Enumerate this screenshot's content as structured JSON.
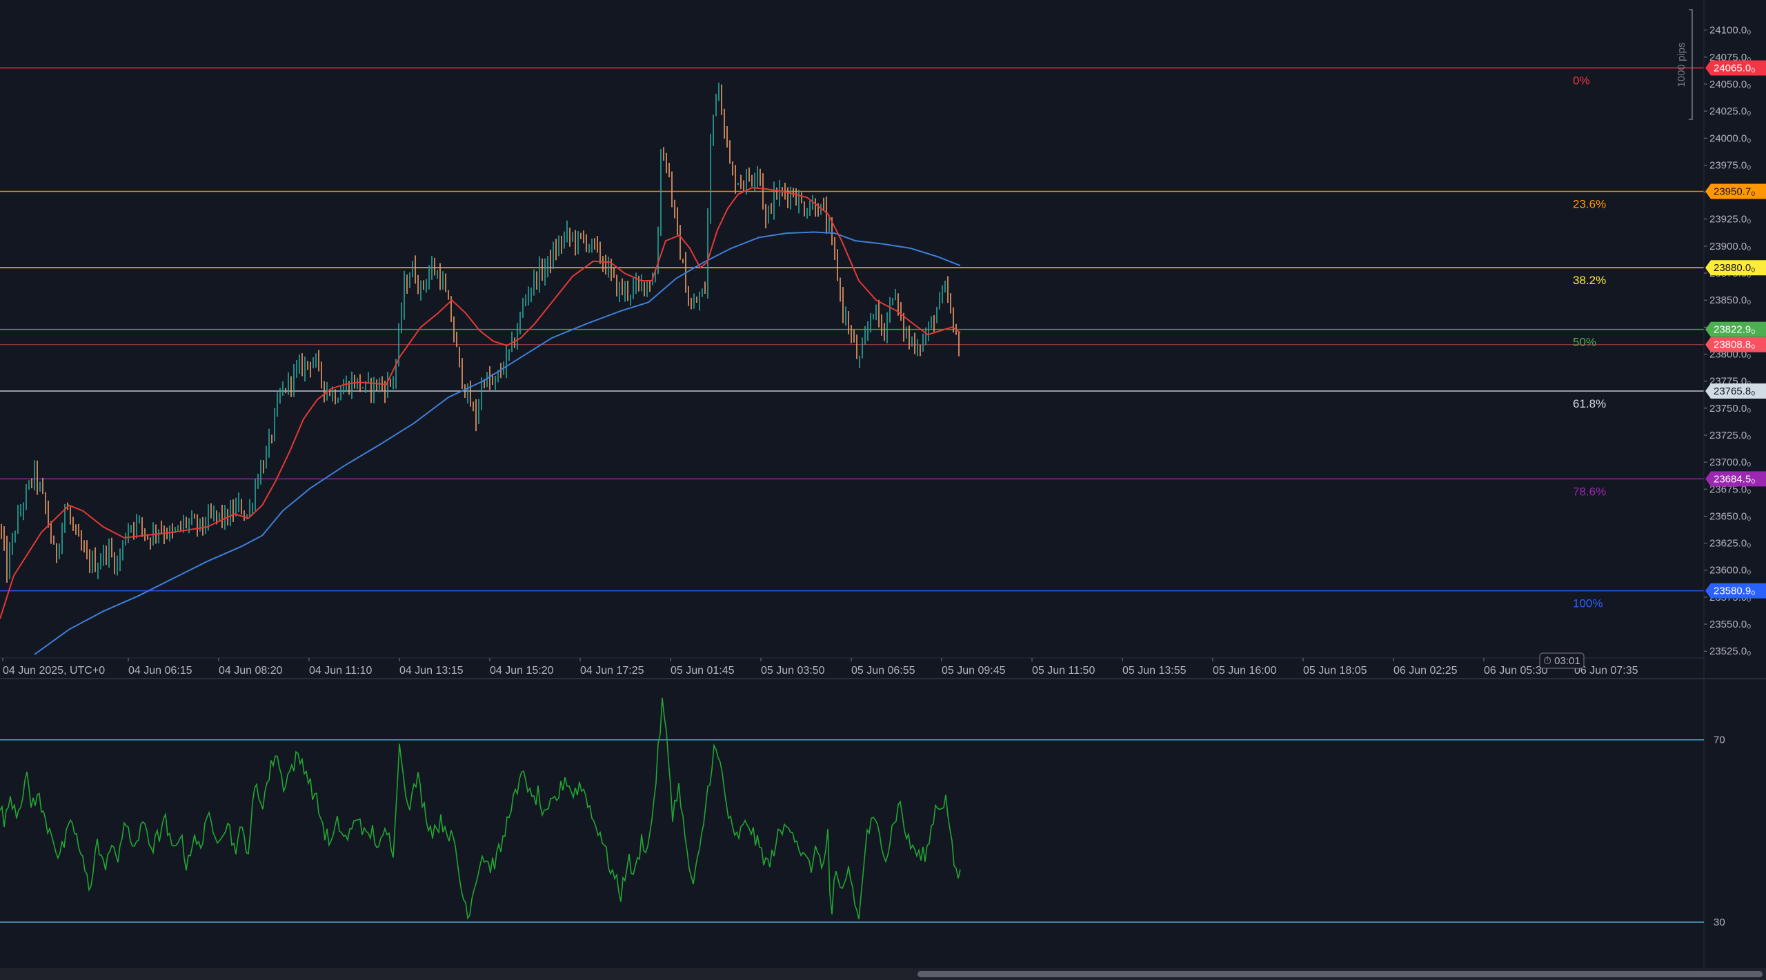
{
  "chart_data": {
    "type": "candlestick",
    "instrument_timezone_label": "04 Jun 2025, UTC+0",
    "price_axis": {
      "ylim": [
        23520,
        24110
      ],
      "tick_values": [
        24100,
        24075,
        24050,
        24025,
        24000,
        23975,
        23950,
        23925,
        23900,
        23875,
        23850,
        23825,
        23800,
        23775,
        23750,
        23725,
        23700,
        23675,
        23650,
        23625,
        23600,
        23575,
        23550,
        23525
      ],
      "tick_labels": [
        "24100.0₀",
        "24075.0₀",
        "24050.0₀",
        "24025.0₀",
        "24000.0₀",
        "23975.0₀",
        "23950.0₀",
        "23925.0₀",
        "23900.0₀",
        "23875.0₀",
        "23850.0₀",
        "23825.0₀",
        "23800.0₀",
        "23775.0₀",
        "23750.0₀",
        "23725.0₀",
        "23700.0₀",
        "23675.0₀",
        "23650.0₀",
        "23625.0₀",
        "23600.0₀",
        "23575.0₀",
        "23550.0₀",
        "23525.0₀"
      ]
    },
    "time_axis": {
      "labels": [
        "04 Jun 2025, UTC+0",
        "04 Jun 06:15",
        "04 Jun 08:20",
        "04 Jun 11:10",
        "04 Jun 13:15",
        "04 Jun 15:20",
        "04 Jun 17:25",
        "05 Jun 01:45",
        "05 Jun 03:50",
        "05 Jun 06:55",
        "05 Jun 09:45",
        "05 Jun 11:50",
        "05 Jun 13:55",
        "05 Jun 16:00",
        "05 Jun 18:05",
        "06 Jun 02:25",
        "06 Jun 05:30",
        "06 Jun 07:35"
      ],
      "countdown": "03:01"
    },
    "measure_label": "1000 pips",
    "fib_levels": [
      {
        "label": "0%",
        "price": 24065.0,
        "price_label": "24065.0₀",
        "color": "#f23645"
      },
      {
        "label": "23.6%",
        "price": 23950.7,
        "price_label": "23950.7₀",
        "color": "#ff9800"
      },
      {
        "label": "38.2%",
        "price": 23880.0,
        "price_label": "23880.0₀",
        "color": "#ffeb3b"
      },
      {
        "label": "50%",
        "price": 23822.9,
        "price_label": "23822.9₀",
        "color": "#4caf50"
      },
      {
        "label": "61.8%",
        "price": 23765.8,
        "price_label": "23765.8₀",
        "color": "#d1dce5"
      },
      {
        "label": "78.6%",
        "price": 23684.5,
        "price_label": "23684.5₀",
        "color": "#9c27b0"
      },
      {
        "label": "100%",
        "price": 23580.9,
        "price_label": "23580.9₀",
        "color": "#2962ff"
      }
    ],
    "current_price": {
      "price": 23808.8,
      "price_label": "23808.8₀",
      "color": "#f7525f"
    },
    "candle_colors": {
      "up": "#26a69a",
      "down": "#ef9a63"
    },
    "close_series_anchors": [
      [
        0,
        23640
      ],
      [
        10,
        23600
      ],
      [
        20,
        23635
      ],
      [
        35,
        23665
      ],
      [
        50,
        23690
      ],
      [
        65,
        23660
      ],
      [
        80,
        23610
      ],
      [
        95,
        23660
      ],
      [
        110,
        23630
      ],
      [
        125,
        23610
      ],
      [
        140,
        23605
      ],
      [
        155,
        23620
      ],
      [
        170,
        23605
      ],
      [
        185,
        23640
      ],
      [
        200,
        23645
      ],
      [
        215,
        23630
      ],
      [
        230,
        23640
      ],
      [
        250,
        23632
      ],
      [
        270,
        23645
      ],
      [
        290,
        23640
      ],
      [
        310,
        23650
      ],
      [
        330,
        23648
      ],
      [
        345,
        23660
      ],
      [
        360,
        23650
      ],
      [
        372,
        23685
      ],
      [
        388,
        23710
      ],
      [
        405,
        23760
      ],
      [
        425,
        23780
      ],
      [
        440,
        23790
      ],
      [
        455,
        23795
      ],
      [
        470,
        23770
      ],
      [
        485,
        23762
      ],
      [
        500,
        23770
      ],
      [
        515,
        23775
      ],
      [
        530,
        23768
      ],
      [
        545,
        23772
      ],
      [
        560,
        23770
      ],
      [
        572,
        23780
      ],
      [
        585,
        23860
      ],
      [
        597,
        23880
      ],
      [
        610,
        23860
      ],
      [
        625,
        23880
      ],
      [
        640,
        23870
      ],
      [
        655,
        23830
      ],
      [
        665,
        23790
      ],
      [
        678,
        23760
      ],
      [
        690,
        23740
      ],
      [
        700,
        23780
      ],
      [
        715,
        23770
      ],
      [
        730,
        23790
      ],
      [
        745,
        23810
      ],
      [
        760,
        23850
      ],
      [
        775,
        23870
      ],
      [
        790,
        23880
      ],
      [
        805,
        23895
      ],
      [
        820,
        23910
      ],
      [
        835,
        23905
      ],
      [
        850,
        23905
      ],
      [
        865,
        23895
      ],
      [
        880,
        23880
      ],
      [
        895,
        23860
      ],
      [
        910,
        23858
      ],
      [
        925,
        23862
      ],
      [
        940,
        23868
      ],
      [
        952,
        23875
      ],
      [
        958,
        23990
      ],
      [
        968,
        23975
      ],
      [
        980,
        23915
      ],
      [
        990,
        23880
      ],
      [
        1000,
        23840
      ],
      [
        1012,
        23850
      ],
      [
        1022,
        23860
      ],
      [
        1030,
        23995
      ],
      [
        1040,
        24060
      ],
      [
        1050,
        24010
      ],
      [
        1060,
        23965
      ],
      [
        1075,
        23960
      ],
      [
        1090,
        23965
      ],
      [
        1100,
        23975
      ],
      [
        1110,
        23920
      ],
      [
        1120,
        23945
      ],
      [
        1135,
        23950
      ],
      [
        1150,
        23950
      ],
      [
        1165,
        23935
      ],
      [
        1180,
        23940
      ],
      [
        1195,
        23930
      ],
      [
        1205,
        23905
      ],
      [
        1212,
        23880
      ],
      [
        1222,
        23840
      ],
      [
        1235,
        23815
      ],
      [
        1245,
        23790
      ],
      [
        1255,
        23815
      ],
      [
        1265,
        23845
      ],
      [
        1280,
        23820
      ],
      [
        1295,
        23860
      ],
      [
        1305,
        23830
      ],
      [
        1320,
        23810
      ],
      [
        1335,
        23810
      ],
      [
        1345,
        23820
      ],
      [
        1360,
        23845
      ],
      [
        1372,
        23860
      ],
      [
        1382,
        23820
      ],
      [
        1392,
        23810
      ]
    ],
    "ema_fast_anchors": [
      [
        0,
        23555
      ],
      [
        20,
        23595
      ],
      [
        60,
        23635
      ],
      [
        100,
        23660
      ],
      [
        120,
        23655
      ],
      [
        150,
        23640
      ],
      [
        180,
        23630
      ],
      [
        250,
        23635
      ],
      [
        300,
        23640
      ],
      [
        340,
        23652
      ],
      [
        360,
        23648
      ],
      [
        380,
        23660
      ],
      [
        400,
        23683
      ],
      [
        420,
        23710
      ],
      [
        440,
        23740
      ],
      [
        460,
        23758
      ],
      [
        480,
        23768
      ],
      [
        500,
        23772
      ],
      [
        520,
        23774
      ],
      [
        560,
        23772
      ],
      [
        580,
        23798
      ],
      [
        610,
        23825
      ],
      [
        635,
        23838
      ],
      [
        655,
        23850
      ],
      [
        675,
        23838
      ],
      [
        695,
        23822
      ],
      [
        715,
        23812
      ],
      [
        735,
        23808
      ],
      [
        755,
        23815
      ],
      [
        775,
        23828
      ],
      [
        800,
        23848
      ],
      [
        830,
        23872
      ],
      [
        860,
        23886
      ],
      [
        885,
        23885
      ],
      [
        905,
        23875
      ],
      [
        930,
        23868
      ],
      [
        945,
        23868
      ],
      [
        965,
        23905
      ],
      [
        985,
        23910
      ],
      [
        1000,
        23898
      ],
      [
        1015,
        23880
      ],
      [
        1025,
        23885
      ],
      [
        1040,
        23915
      ],
      [
        1055,
        23935
      ],
      [
        1070,
        23948
      ],
      [
        1090,
        23954
      ],
      [
        1110,
        23953
      ],
      [
        1140,
        23950
      ],
      [
        1170,
        23945
      ],
      [
        1200,
        23930
      ],
      [
        1220,
        23905
      ],
      [
        1245,
        23868
      ],
      [
        1270,
        23850
      ],
      [
        1300,
        23840
      ],
      [
        1320,
        23830
      ],
      [
        1345,
        23818
      ],
      [
        1365,
        23822
      ],
      [
        1380,
        23825
      ],
      [
        1392,
        23820
      ]
    ],
    "ema_slow_anchors": [
      [
        50,
        23522
      ],
      [
        100,
        23545
      ],
      [
        150,
        23562
      ],
      [
        200,
        23576
      ],
      [
        250,
        23592
      ],
      [
        300,
        23608
      ],
      [
        350,
        23622
      ],
      [
        380,
        23632
      ],
      [
        410,
        23655
      ],
      [
        450,
        23676
      ],
      [
        500,
        23697
      ],
      [
        550,
        23716
      ],
      [
        600,
        23736
      ],
      [
        650,
        23760
      ],
      [
        700,
        23775
      ],
      [
        750,
        23795
      ],
      [
        800,
        23815
      ],
      [
        850,
        23828
      ],
      [
        900,
        23840
      ],
      [
        940,
        23848
      ],
      [
        980,
        23870
      ],
      [
        1020,
        23885
      ],
      [
        1060,
        23898
      ],
      [
        1100,
        23908
      ],
      [
        1140,
        23912
      ],
      [
        1180,
        23913
      ],
      [
        1210,
        23912
      ],
      [
        1240,
        23905
      ],
      [
        1280,
        23902
      ],
      [
        1320,
        23898
      ],
      [
        1360,
        23890
      ],
      [
        1392,
        23882
      ]
    ],
    "oscillator": {
      "type": "line",
      "ylim": [
        22,
        81
      ],
      "levels": [
        70,
        30
      ],
      "level_labels": [
        "70",
        "30"
      ],
      "color": "#21a631",
      "anchors": [
        [
          0,
          55
        ],
        [
          8,
          52
        ],
        [
          15,
          58
        ],
        [
          25,
          54
        ],
        [
          32,
          58
        ],
        [
          38,
          62
        ],
        [
          45,
          56
        ],
        [
          55,
          58
        ],
        [
          65,
          52
        ],
        [
          75,
          50
        ],
        [
          85,
          44
        ],
        [
          95,
          48
        ],
        [
          105,
          52
        ],
        [
          115,
          46
        ],
        [
          125,
          40
        ],
        [
          130,
          37
        ],
        [
          140,
          48
        ],
        [
          150,
          42
        ],
        [
          160,
          46
        ],
        [
          170,
          44
        ],
        [
          180,
          52
        ],
        [
          190,
          47
        ],
        [
          200,
          48
        ],
        [
          210,
          52
        ],
        [
          220,
          46
        ],
        [
          230,
          49
        ],
        [
          240,
          52
        ],
        [
          250,
          45
        ],
        [
          260,
          50
        ],
        [
          270,
          43
        ],
        [
          280,
          48
        ],
        [
          290,
          46
        ],
        [
          300,
          54
        ],
        [
          310,
          48
        ],
        [
          320,
          50
        ],
        [
          330,
          52
        ],
        [
          340,
          46
        ],
        [
          350,
          50
        ],
        [
          360,
          46
        ],
        [
          370,
          60
        ],
        [
          380,
          56
        ],
        [
          390,
          62
        ],
        [
          400,
          68
        ],
        [
          410,
          60
        ],
        [
          420,
          63
        ],
        [
          430,
          66
        ],
        [
          440,
          65
        ],
        [
          450,
          60
        ],
        [
          460,
          56
        ],
        [
          470,
          50
        ],
        [
          480,
          47
        ],
        [
          490,
          52
        ],
        [
          500,
          48
        ],
        [
          510,
          50
        ],
        [
          520,
          54
        ],
        [
          530,
          48
        ],
        [
          540,
          50
        ],
        [
          550,
          46
        ],
        [
          560,
          50
        ],
        [
          570,
          46
        ],
        [
          576,
          62
        ],
        [
          580,
          70
        ],
        [
          586,
          60
        ],
        [
          595,
          56
        ],
        [
          605,
          62
        ],
        [
          615,
          55
        ],
        [
          625,
          50
        ],
        [
          640,
          52
        ],
        [
          650,
          50
        ],
        [
          660,
          46
        ],
        [
          670,
          36
        ],
        [
          680,
          32
        ],
        [
          690,
          40
        ],
        [
          700,
          45
        ],
        [
          710,
          42
        ],
        [
          720,
          44
        ],
        [
          730,
          48
        ],
        [
          740,
          56
        ],
        [
          750,
          58
        ],
        [
          760,
          64
        ],
        [
          770,
          56
        ],
        [
          780,
          58
        ],
        [
          790,
          52
        ],
        [
          800,
          56
        ],
        [
          810,
          58
        ],
        [
          820,
          62
        ],
        [
          830,
          58
        ],
        [
          840,
          60
        ],
        [
          850,
          58
        ],
        [
          860,
          52
        ],
        [
          870,
          50
        ],
        [
          880,
          44
        ],
        [
          890,
          40
        ],
        [
          900,
          36
        ],
        [
          910,
          44
        ],
        [
          920,
          40
        ],
        [
          930,
          48
        ],
        [
          940,
          46
        ],
        [
          950,
          60
        ],
        [
          960,
          78
        ],
        [
          968,
          68
        ],
        [
          975,
          54
        ],
        [
          985,
          60
        ],
        [
          995,
          45
        ],
        [
          1005,
          38
        ],
        [
          1015,
          46
        ],
        [
          1025,
          58
        ],
        [
          1035,
          68
        ],
        [
          1045,
          64
        ],
        [
          1055,
          54
        ],
        [
          1065,
          48
        ],
        [
          1075,
          50
        ],
        [
          1085,
          52
        ],
        [
          1095,
          48
        ],
        [
          1105,
          45
        ],
        [
          1115,
          42
        ],
        [
          1125,
          48
        ],
        [
          1135,
          50
        ],
        [
          1145,
          52
        ],
        [
          1155,
          48
        ],
        [
          1165,
          44
        ],
        [
          1175,
          42
        ],
        [
          1185,
          46
        ],
        [
          1195,
          42
        ],
        [
          1200,
          50
        ],
        [
          1205,
          28
        ],
        [
          1210,
          40
        ],
        [
          1220,
          36
        ],
        [
          1230,
          42
        ],
        [
          1240,
          34
        ],
        [
          1245,
          30
        ],
        [
          1255,
          48
        ],
        [
          1265,
          52
        ],
        [
          1275,
          50
        ],
        [
          1285,
          44
        ],
        [
          1295,
          52
        ],
        [
          1305,
          56
        ],
        [
          1315,
          48
        ],
        [
          1325,
          46
        ],
        [
          1335,
          44
        ],
        [
          1345,
          46
        ],
        [
          1355,
          55
        ],
        [
          1365,
          56
        ],
        [
          1372,
          57
        ],
        [
          1380,
          46
        ],
        [
          1387,
          39
        ],
        [
          1392,
          42
        ]
      ]
    }
  }
}
